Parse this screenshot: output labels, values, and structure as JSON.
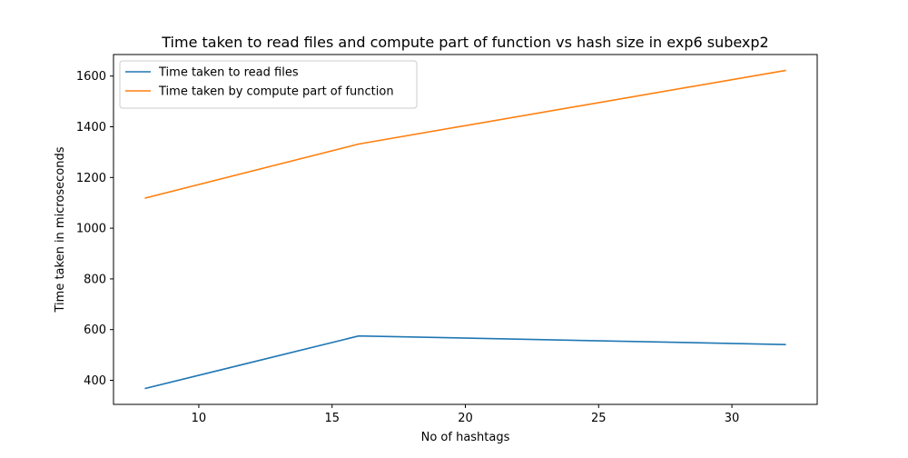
{
  "chart_data": {
    "type": "line",
    "title": "Time taken to read files and compute part of function vs hash size in exp6 subexp2",
    "xlabel": "No of hashtags",
    "ylabel": "Time taken in microseconds",
    "x": [
      8,
      16,
      32
    ],
    "series": [
      {
        "name": "Time taken to read files",
        "values": [
          368,
          575,
          541
        ],
        "color": "#1f77b4"
      },
      {
        "name": "Time taken by compute part of function",
        "values": [
          1119,
          1332,
          1622
        ],
        "color": "#ff7f0e"
      }
    ],
    "xlim": [
      6.8,
      33.2
    ],
    "ylim": [
      305,
      1685
    ],
    "xticks": [
      10,
      15,
      20,
      25,
      30
    ],
    "yticks": [
      400,
      600,
      800,
      1000,
      1200,
      1400,
      1600
    ],
    "grid": false,
    "legend_position": "top-left"
  }
}
